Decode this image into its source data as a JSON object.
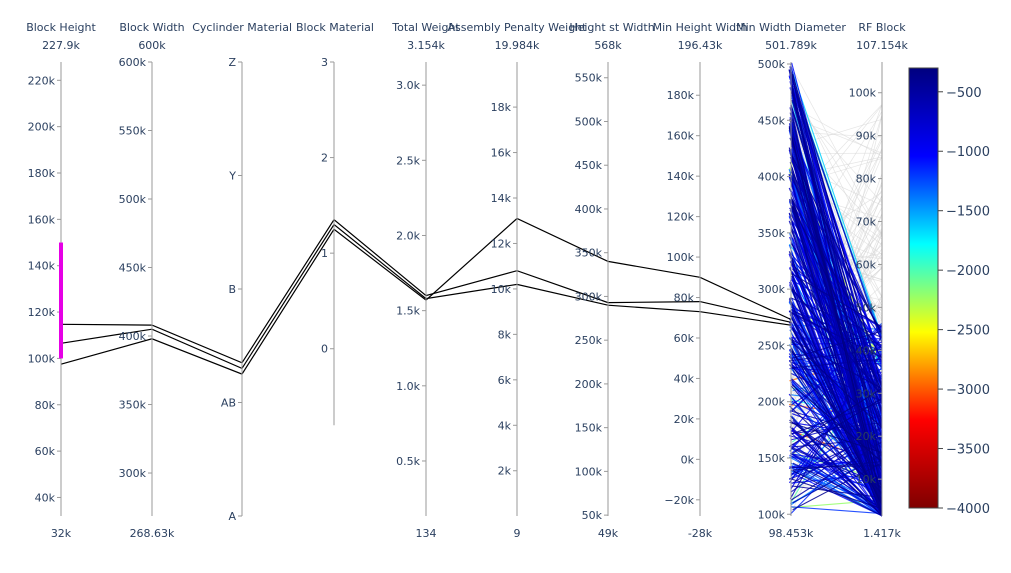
{
  "chart_data": {
    "type": "parcoords",
    "colorscale": {
      "range": [
        -4000,
        -300
      ],
      "ticks": [
        -500,
        -1000,
        -1500,
        -2000,
        -2500,
        -3000,
        -3500,
        -4000
      ],
      "tick_labels": [
        "−500",
        "−1000",
        "−1500",
        "−2000",
        "−2500",
        "−3000",
        "−3500",
        "−4000"
      ],
      "stops": [
        "#7f0000",
        "#ff0000",
        "#ffff00",
        "#00ffff",
        "#0000ff",
        "#00007f"
      ]
    },
    "constraint": {
      "dimension": 0,
      "range": [
        100000,
        150000
      ],
      "color": "#e600e6"
    },
    "dimensions": [
      {
        "label": "Block Height",
        "range": [
          32000,
          227900
        ],
        "min_label": "32k",
        "max_label": "227.9k",
        "ticks": [
          40000,
          60000,
          80000,
          100000,
          120000,
          140000,
          160000,
          180000,
          200000,
          220000
        ],
        "tick_labels": [
          "40k",
          "60k",
          "80k",
          "100k",
          "120k",
          "140k",
          "160k",
          "180k",
          "200k",
          "220k"
        ],
        "tick_side": "left"
      },
      {
        "label": "Block Width",
        "range": [
          268630,
          600000
        ],
        "min_label": "268.63k",
        "max_label": "600k",
        "ticks": [
          300000,
          350000,
          400000,
          450000,
          500000,
          550000,
          600000
        ],
        "tick_labels": [
          "300k",
          "350k",
          "400k",
          "450k",
          "500k",
          "550k",
          "600k"
        ],
        "tick_side": "left"
      },
      {
        "label": "Cyclinder Material",
        "range": [
          0,
          4
        ],
        "min_label": "",
        "max_label": "",
        "ticks": [
          0,
          1,
          2,
          3,
          4
        ],
        "tick_labels": [
          "A",
          "AB",
          "B",
          "Y",
          "Z"
        ],
        "tick_side": "left"
      },
      {
        "label": "Block Material",
        "range": [
          -0.8,
          3
        ],
        "min_label": "",
        "max_label": "",
        "span": [
          0.2,
          1.0
        ],
        "ticks": [
          0,
          1,
          2,
          3
        ],
        "tick_labels": [
          "0",
          "1",
          "2",
          "3"
        ],
        "tick_side": "left"
      },
      {
        "label": "Total Weight",
        "range": [
          134,
          3154
        ],
        "min_label": "134",
        "max_label": "3.154k",
        "ticks": [
          500,
          1000,
          1500,
          2000,
          2500,
          3000
        ],
        "tick_labels": [
          "0.5k",
          "1.0k",
          "1.5k",
          "2.0k",
          "2.5k",
          "3.0k"
        ],
        "tick_side": "left"
      },
      {
        "label": "Assembly Penalty Weight",
        "range": [
          9,
          19984
        ],
        "min_label": "9",
        "max_label": "19.984k",
        "ticks": [
          2000,
          4000,
          6000,
          8000,
          10000,
          12000,
          14000,
          16000,
          18000
        ],
        "tick_labels": [
          "2k",
          "4k",
          "6k",
          "8k",
          "10k",
          "12k",
          "14k",
          "16k",
          "18k"
        ],
        "tick_side": "left"
      },
      {
        "label": "Height st Width",
        "range": [
          49000,
          568000
        ],
        "min_label": "49k",
        "max_label": "568k",
        "ticks": [
          50000,
          100000,
          150000,
          200000,
          250000,
          300000,
          350000,
          400000,
          450000,
          500000,
          550000
        ],
        "tick_labels": [
          "50k",
          "100k",
          "150k",
          "200k",
          "250k",
          "300k",
          "350k",
          "400k",
          "450k",
          "500k",
          "550k"
        ],
        "tick_side": "left"
      },
      {
        "label": "Min Height Width",
        "range": [
          -28000,
          196430
        ],
        "min_label": "-28k",
        "max_label": "196.43k",
        "ticks": [
          -20000,
          0,
          20000,
          40000,
          60000,
          80000,
          100000,
          120000,
          140000,
          160000,
          180000
        ],
        "tick_labels": [
          "−20k",
          "0k",
          "20k",
          "40k",
          "60k",
          "80k",
          "100k",
          "120k",
          "140k",
          "160k",
          "180k"
        ],
        "tick_side": "left"
      },
      {
        "label": "Min Width Diameter",
        "range": [
          98453,
          501789
        ],
        "min_label": "98.453k",
        "max_label": "501.789k",
        "ticks": [
          100000,
          150000,
          200000,
          250000,
          300000,
          350000,
          400000,
          450000,
          500000
        ],
        "tick_labels": [
          "100k",
          "150k",
          "200k",
          "250k",
          "300k",
          "350k",
          "400k",
          "450k",
          "500k"
        ],
        "tick_side": "left"
      },
      {
        "label": "RF Block",
        "range": [
          1417,
          107154
        ],
        "min_label": "1.417k",
        "max_label": "107.154k",
        "ticks": [
          10000,
          20000,
          30000,
          40000,
          50000,
          60000,
          70000,
          80000,
          90000,
          100000
        ],
        "tick_labels": [
          "10k",
          "20k",
          "30k",
          "40k",
          "50k",
          "60k",
          "70k",
          "80k",
          "90k",
          "100k"
        ],
        "tick_side": "left"
      }
    ],
    "highlighted_lines": [
      {
        "values": [
          114700,
          408000,
          1.35,
          1.35,
          1600,
          10800,
          293000,
          78000,
          270500,
          null
        ]
      },
      {
        "values": [
          106500,
          405000,
          1.3,
          1.3,
          1580,
          10200,
          290000,
          73000,
          268000,
          null
        ]
      },
      {
        "values": [
          97500,
          398000,
          1.25,
          1.25,
          1570,
          13100,
          340000,
          90000,
          273000,
          null
        ]
      }
    ]
  }
}
